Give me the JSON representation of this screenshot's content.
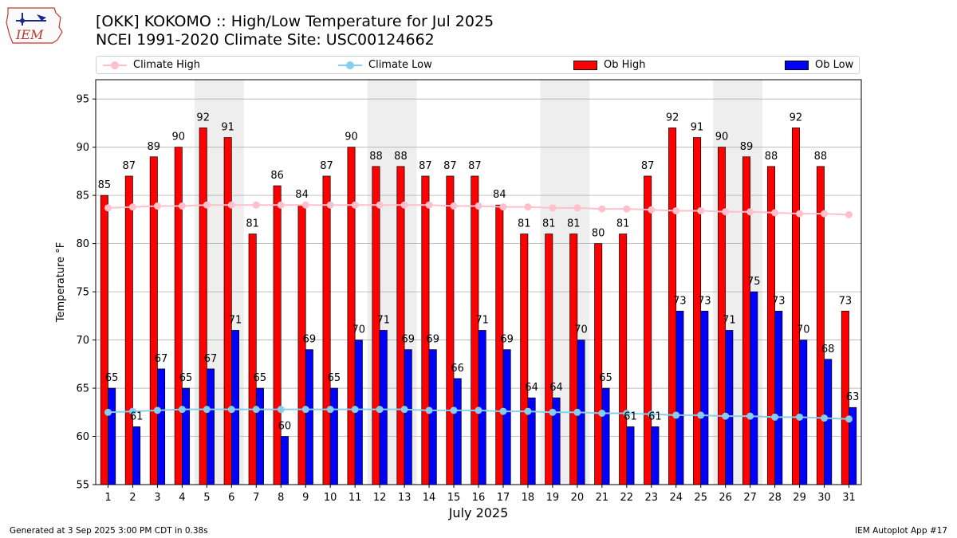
{
  "header": {
    "title_line1": "[OKK] KOKOMO :: High/Low Temperature for Jul 2025",
    "title_line2": "NCEI 1991-2020 Climate Site: USC00124662",
    "logo_text": "IEM"
  },
  "footer": {
    "left": "Generated at 3 Sep 2025 3:00 PM CDT in 0.38s",
    "right": "IEM Autoplot App #17"
  },
  "legend": [
    {
      "label": "Climate High",
      "kind": "line",
      "color": "#ffc0cb"
    },
    {
      "label": "Climate Low",
      "kind": "line",
      "color": "#87ceeb"
    },
    {
      "label": "Ob High",
      "kind": "bar",
      "color": "#ff0000"
    },
    {
      "label": "Ob Low",
      "kind": "bar",
      "color": "#0000ff"
    }
  ],
  "chart_data": {
    "type": "bar",
    "title": "[OKK] KOKOMO :: High/Low Temperature for Jul 2025",
    "subtitle": "NCEI 1991-2020 Climate Site: USC00124662",
    "xlabel": "July 2025",
    "ylabel": "Temperature °F",
    "ylim": [
      55,
      97
    ],
    "yticks": [
      55,
      60,
      65,
      70,
      75,
      80,
      85,
      90,
      95
    ],
    "grid": "horizontal",
    "legend_position": "top",
    "categories": [
      "1",
      "2",
      "3",
      "4",
      "5",
      "6",
      "7",
      "8",
      "9",
      "10",
      "11",
      "12",
      "13",
      "14",
      "15",
      "16",
      "17",
      "18",
      "19",
      "20",
      "21",
      "22",
      "23",
      "24",
      "25",
      "26",
      "27",
      "28",
      "29",
      "30",
      "31"
    ],
    "weekend_shading": [
      [
        5,
        6
      ],
      [
        12,
        13
      ],
      [
        19,
        20
      ],
      [
        26,
        27
      ]
    ],
    "series": [
      {
        "name": "Ob High",
        "kind": "bar",
        "color": "#ff0000",
        "values": [
          85,
          87,
          89,
          90,
          92,
          91,
          81,
          86,
          84,
          87,
          90,
          88,
          88,
          87,
          87,
          87,
          84,
          81,
          81,
          81,
          80,
          81,
          87,
          92,
          91,
          90,
          89,
          88,
          92,
          88,
          73
        ]
      },
      {
        "name": "Ob Low",
        "kind": "bar",
        "color": "#0000ff",
        "values": [
          65,
          61,
          67,
          65,
          67,
          71,
          65,
          60,
          69,
          65,
          70,
          71,
          69,
          69,
          66,
          71,
          69,
          64,
          64,
          70,
          65,
          61,
          61,
          73,
          73,
          71,
          75,
          73,
          70,
          68,
          63
        ]
      },
      {
        "name": "Climate High",
        "kind": "line",
        "color": "#ffc0cb",
        "values": [
          83.7,
          83.8,
          83.9,
          83.9,
          84.0,
          84.0,
          84.0,
          84.0,
          84.0,
          84.0,
          84.0,
          84.0,
          84.0,
          84.0,
          83.9,
          83.9,
          83.8,
          83.8,
          83.7,
          83.7,
          83.6,
          83.6,
          83.5,
          83.4,
          83.4,
          83.3,
          83.3,
          83.2,
          83.1,
          83.1,
          83.0
        ]
      },
      {
        "name": "Climate Low",
        "kind": "line",
        "color": "#87ceeb",
        "values": [
          62.5,
          62.6,
          62.7,
          62.8,
          62.8,
          62.8,
          62.8,
          62.8,
          62.8,
          62.8,
          62.8,
          62.8,
          62.8,
          62.7,
          62.7,
          62.7,
          62.6,
          62.6,
          62.5,
          62.5,
          62.4,
          62.4,
          62.3,
          62.2,
          62.2,
          62.1,
          62.1,
          62.0,
          62.0,
          61.9,
          61.8
        ]
      }
    ],
    "bar_labels": {
      "high": [
        "85",
        "87",
        "89",
        "90",
        "92",
        "91",
        "81",
        "86",
        "84",
        "87",
        "90",
        "88",
        "88",
        "87",
        "87",
        "87",
        "84",
        "81",
        "81",
        "81",
        "80",
        "81",
        "87",
        "92",
        "91",
        "90",
        "89",
        "88",
        "92",
        "88",
        "73"
      ],
      "low": [
        "65",
        "61",
        "67",
        "65",
        "67",
        "71",
        "65",
        "60",
        "69",
        "65",
        "70",
        "71",
        "69",
        "69",
        "66",
        "71",
        "69",
        "64",
        "64",
        "70",
        "65",
        "61",
        "61",
        "73",
        "73",
        "71",
        "75",
        "73",
        "70",
        "68",
        "63"
      ]
    }
  }
}
